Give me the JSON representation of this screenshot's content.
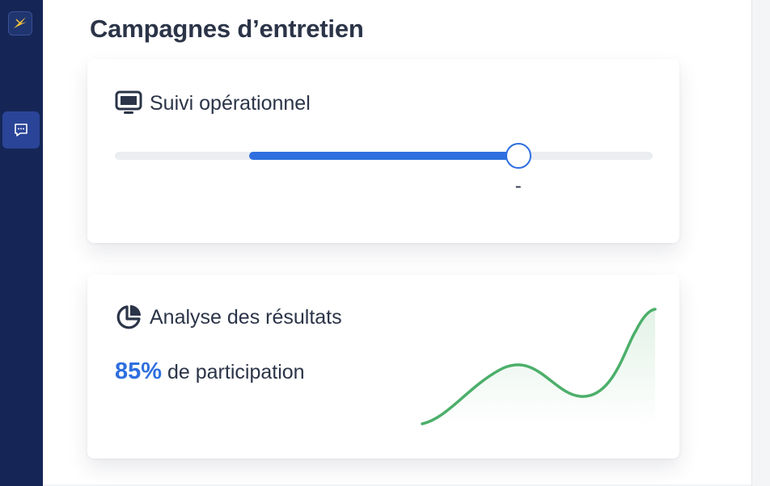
{
  "app": {
    "logo_icon": "bird-logo-icon",
    "nav": [
      {
        "icon": "chat-bubble-icon",
        "active": true
      }
    ]
  },
  "page": {
    "title": "Campagnes d’entretien"
  },
  "cards": {
    "tracking": {
      "icon": "monitor-icon",
      "title": "Suivi opérationnel",
      "slider": {
        "range_start": 0.25,
        "range_end": 0.75,
        "value_label": "-"
      }
    },
    "analysis": {
      "icon": "pie-chart-icon",
      "title": "Analyse des résultats",
      "stat_value": "85%",
      "stat_label": "de participation"
    }
  },
  "colors": {
    "sidebar": "#152656",
    "accent": "#2f6fdf",
    "sparkline": "#4caf6a"
  }
}
